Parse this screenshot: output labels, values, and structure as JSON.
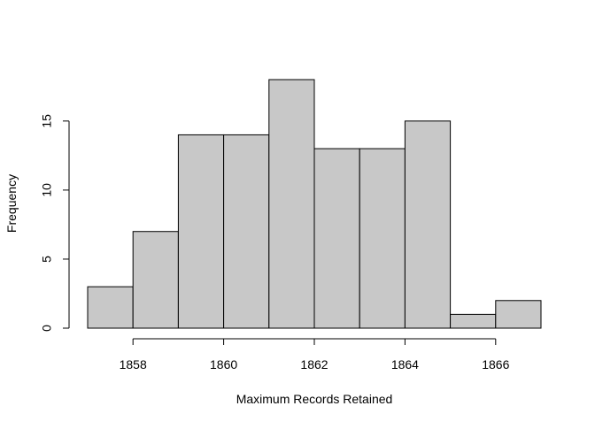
{
  "chart_data": {
    "type": "bar",
    "subtype": "histogram",
    "title": "",
    "xlabel": "Maximum Records Retained",
    "ylabel": "Frequency",
    "bins": [
      {
        "start": 1857,
        "end": 1858,
        "count": 3
      },
      {
        "start": 1858,
        "end": 1859,
        "count": 7
      },
      {
        "start": 1859,
        "end": 1860,
        "count": 14
      },
      {
        "start": 1860,
        "end": 1861,
        "count": 14
      },
      {
        "start": 1861,
        "end": 1862,
        "count": 18
      },
      {
        "start": 1862,
        "end": 1863,
        "count": 13
      },
      {
        "start": 1863,
        "end": 1864,
        "count": 13
      },
      {
        "start": 1864,
        "end": 1865,
        "count": 15
      },
      {
        "start": 1865,
        "end": 1866,
        "count": 1
      },
      {
        "start": 1866,
        "end": 1867,
        "count": 2
      }
    ],
    "xticks": [
      "1858",
      "1860",
      "1862",
      "1864",
      "1866"
    ],
    "yticks": [
      "0",
      "5",
      "10",
      "15"
    ],
    "xlim": [
      1857,
      1867
    ],
    "ylim": [
      0,
      18
    ],
    "grid": false,
    "legend": "none",
    "bar_color": "#c8c8c8",
    "edge_color": "#000000"
  }
}
